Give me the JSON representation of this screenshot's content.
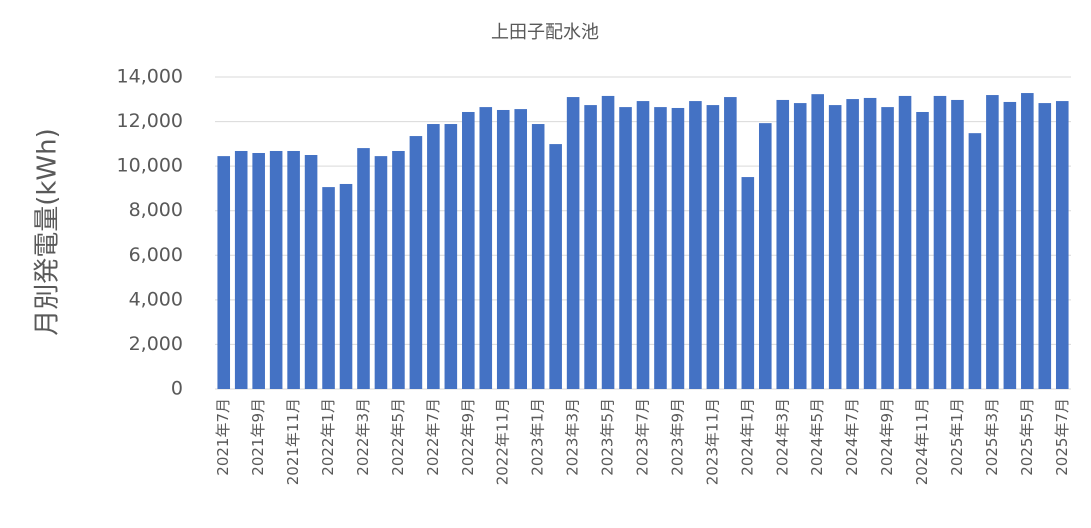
{
  "chart_data": {
    "type": "bar",
    "title": "上田子配水池",
    "y_label": "月別発電量(kWh)",
    "categories": [
      "2021年7月",
      null,
      "2021年9月",
      null,
      "2021年11月",
      null,
      "2022年1月",
      null,
      "2022年3月",
      null,
      "2022年5月",
      null,
      "2022年7月",
      null,
      "2022年9月",
      null,
      "2022年11月",
      null,
      "2023年1月",
      null,
      "2023年3月",
      null,
      "2023年5月",
      null,
      "2023年7月",
      null,
      "2023年9月",
      null,
      "2023年11月",
      null,
      "2024年1月",
      null,
      "2024年3月",
      null,
      "2024年5月",
      null,
      "2024年7月",
      null,
      "2024年9月",
      null,
      "2024年11月",
      null,
      "2025年1月",
      null,
      "2025年3月",
      null,
      "2025年5月",
      null,
      "2025年7月"
    ],
    "values": [
      10450,
      10680,
      10590,
      10680,
      10680,
      10500,
      9060,
      9200,
      10810,
      10450,
      10680,
      11350,
      11890,
      11890,
      12430,
      12650,
      12520,
      12560,
      11890,
      10990,
      13100,
      12740,
      13150,
      12650,
      12920,
      12650,
      12610,
      12920,
      12740,
      13100,
      9510,
      11930,
      12970,
      12830,
      13230,
      12740,
      13010,
      13060,
      12650,
      13150,
      12430,
      13150,
      12970,
      11480,
      13190,
      12880,
      13280,
      12830,
      12920
    ],
    "color": "#4472c4",
    "ylim": [
      0,
      14000
    ],
    "yticks": [
      0,
      {
        "value": 2000,
        "label": "2,000"
      },
      {
        "value": 4000,
        "label": "4,000"
      },
      {
        "value": 6000,
        "label": "6,000"
      },
      {
        "value": 8000,
        "label": "8,000"
      },
      {
        "value": 10000,
        "label": "10,000"
      },
      {
        "value": 12000,
        "label": "12,000"
      },
      {
        "value": 14000,
        "label": "14,000"
      }
    ],
    "grid": true
  }
}
